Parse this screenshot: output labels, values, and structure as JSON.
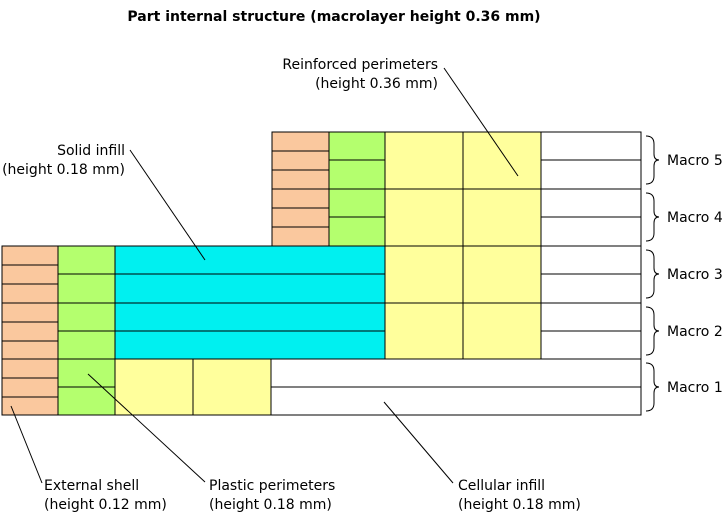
{
  "title": "Part internal structure (macrolayer height 0.36 mm)",
  "labels": {
    "reinforced_perimeters": {
      "line1": "Reinforced perimeters",
      "line2": "(height 0.36 mm)"
    },
    "solid_infill": {
      "line1": "Solid infill",
      "line2": "(height 0.18 mm)"
    },
    "external_shell": {
      "line1": "External shell",
      "line2": "(height 0.12 mm)"
    },
    "plastic_perimeters": {
      "line1": "Plastic perimeters",
      "line2": "(height 0.18 mm)"
    },
    "cellular_infill": {
      "line1": "Cellular infill",
      "line2": "(height 0.18 mm)"
    }
  },
  "macros": [
    "Macro 5",
    "Macro 4",
    "Macro 3",
    "Macro 2",
    "Macro 1"
  ],
  "colors": {
    "external_shell": "#fac89e",
    "plastic_perimeters": "#b4ff6e",
    "solid_infill": "#00f0f0",
    "reinforced_perimeters": "#ffff9c",
    "cellular_infill": "#ffffff"
  }
}
